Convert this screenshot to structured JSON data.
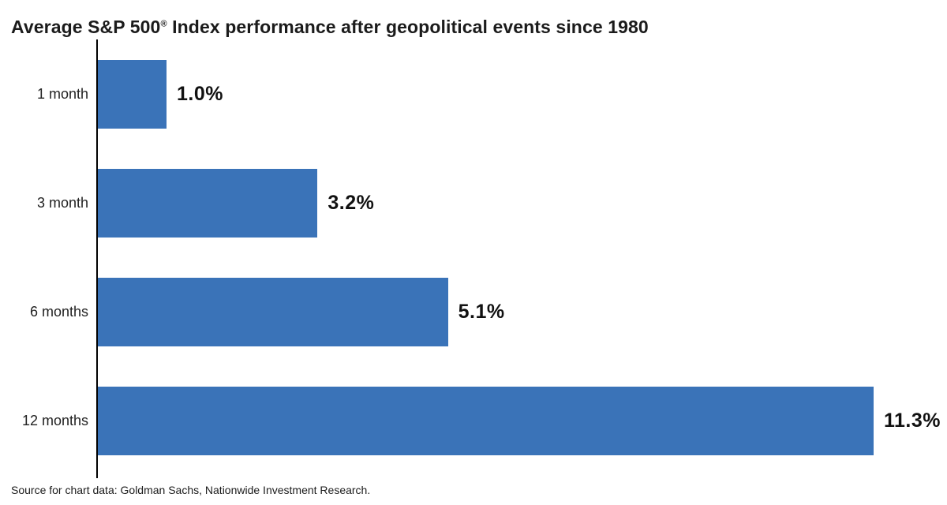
{
  "chart_data": {
    "type": "bar",
    "orientation": "horizontal",
    "title": "Average S&P 500® Index performance after geopolitical events since 1980",
    "title_main": "Average S&P 500",
    "title_sup": "®",
    "title_rest": " Index performance after geopolitical events since 1980",
    "categories": [
      "1 month",
      "3 month",
      "6 months",
      "12 months"
    ],
    "values": [
      1.0,
      3.2,
      5.1,
      11.3
    ],
    "value_labels": [
      "1.0%",
      "3.2%",
      "5.1%",
      "11.3%"
    ],
    "xlim": [
      0,
      12.3
    ],
    "grid": false,
    "legend": "none",
    "bar_color": "#3a73b8",
    "axis_color": "#000000",
    "source": "Source for chart data: Goldman Sachs, Nationwide Investment Research."
  }
}
